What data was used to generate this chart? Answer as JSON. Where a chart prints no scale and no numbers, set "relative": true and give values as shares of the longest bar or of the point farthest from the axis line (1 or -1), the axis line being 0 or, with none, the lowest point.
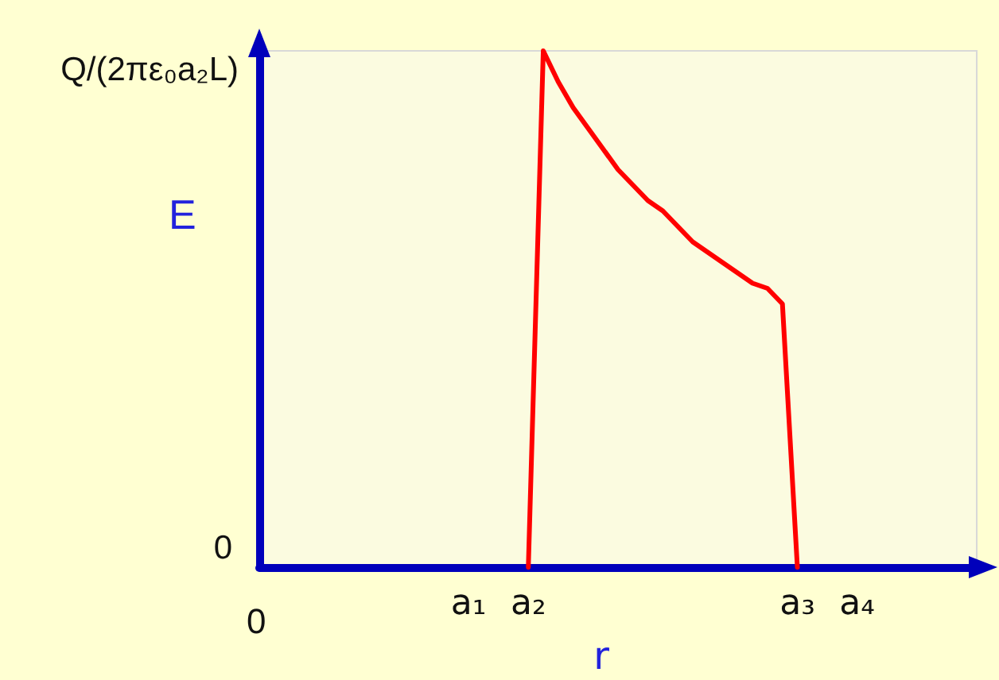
{
  "chart_data": {
    "type": "line",
    "xlabel": "r",
    "ylabel": "E",
    "relative": true,
    "categories": [
      null,
      null,
      null,
      null,
      null,
      null,
      null,
      null,
      null,
      null,
      null,
      null,
      null,
      null,
      "a₁",
      null,
      null,
      null,
      "a₂",
      null,
      null,
      null,
      null,
      null,
      null,
      null,
      null,
      null,
      null,
      null,
      null,
      null,
      null,
      null,
      null,
      null,
      "a₃",
      null,
      null,
      null,
      "a₄",
      null,
      null,
      null,
      null,
      null,
      null,
      null,
      null
    ],
    "series": [
      {
        "color": "#ff0000",
        "values": [
          null,
          null,
          null,
          null,
          null,
          null,
          null,
          null,
          null,
          null,
          null,
          null,
          null,
          null,
          null,
          null,
          null,
          null,
          0,
          1.0,
          0.94,
          0.89,
          0.85,
          0.81,
          0.77,
          0.74,
          0.71,
          0.69,
          0.66,
          0.63,
          0.61,
          0.59,
          0.57,
          0.55,
          0.54,
          0.51,
          0,
          null,
          null,
          null,
          null,
          null,
          null,
          null,
          null,
          null,
          null,
          null,
          null
        ]
      }
    ],
    "annotations": [
      "Q/(2πε₀a₂L)",
      "0",
      "0"
    ],
    "marker": "none",
    "line_style": "solid"
  }
}
